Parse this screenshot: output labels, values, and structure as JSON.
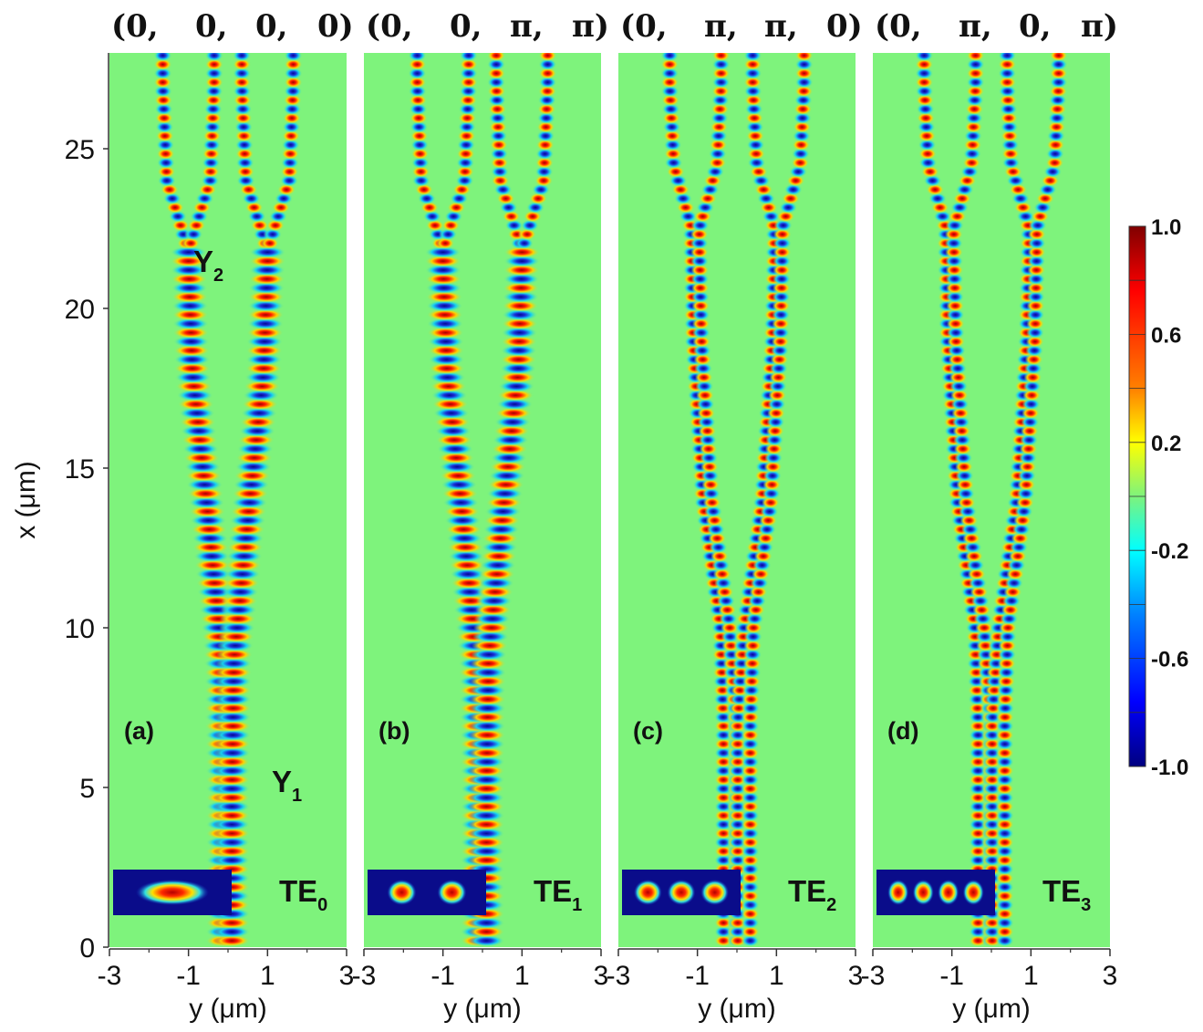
{
  "figure": {
    "y_axis_label": "x (μm)",
    "y_ticks": [
      "0",
      "5",
      "10",
      "15",
      "20",
      "25"
    ],
    "x_axis_label": "y (μm)",
    "x_ticks": [
      "-3",
      "-1",
      "1",
      "3"
    ],
    "junction_labels": {
      "y1": {
        "main": "Y",
        "sub": "1"
      },
      "y2": {
        "main": "Y",
        "sub": "2"
      }
    }
  },
  "panels": [
    {
      "id": "a",
      "tag": "(a)",
      "phase": [
        "(0,",
        "0,",
        "0,",
        "0)"
      ],
      "mode": {
        "main": "TE",
        "sub": "0"
      },
      "lobes": 1
    },
    {
      "id": "b",
      "tag": "(b)",
      "phase": [
        "(0,",
        "0,",
        "π,",
        "π)"
      ],
      "mode": {
        "main": "TE",
        "sub": "1"
      },
      "lobes": 2
    },
    {
      "id": "c",
      "tag": "(c)",
      "phase": [
        "(0,",
        "π,",
        "π,",
        "0)"
      ],
      "mode": {
        "main": "TE",
        "sub": "2"
      },
      "lobes": 3
    },
    {
      "id": "d",
      "tag": "(d)",
      "phase": [
        "(0,",
        "π,",
        "0,",
        "π)"
      ],
      "mode": {
        "main": "TE",
        "sub": "3"
      },
      "lobes": 4
    }
  ],
  "colorbar": {
    "labels": [
      "1.0",
      "0.6",
      "0.2",
      "-0.2",
      "-0.6",
      "-1.0"
    ],
    "range": [
      -1.0,
      1.0
    ]
  },
  "colors": {
    "background_field": "#7ef37c",
    "positive": "#ff1a00",
    "negative": "#1a2fd8",
    "zero_ring": "#ffe600",
    "mode_box": "#0a0c8a"
  }
}
